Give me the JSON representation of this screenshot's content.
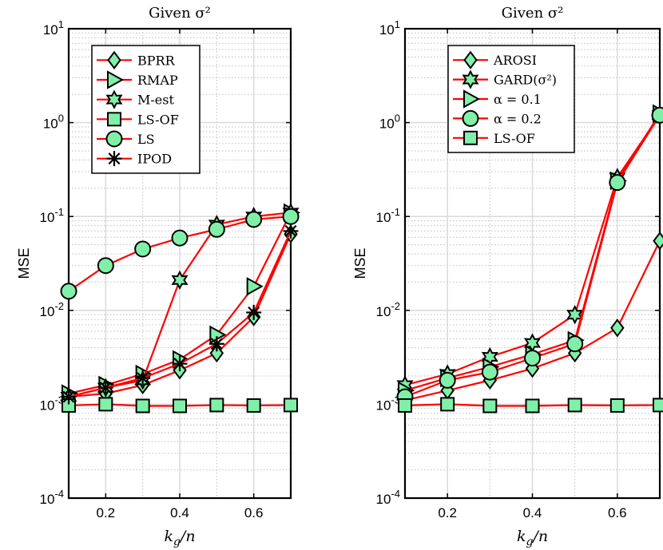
{
  "colors": {
    "line": "#ff0000",
    "marker_fill": "#80f0a8",
    "marker_edge": "#000000",
    "grid_major": "#dcdcdc",
    "grid_minor": "#bfbfbf"
  },
  "chart_data": [
    {
      "type": "line",
      "title": "Given σ²",
      "xlabel": "k_g/n",
      "ylabel": "MSE",
      "yscale": "log",
      "xlim": [
        0.1,
        0.7
      ],
      "ylim": [
        0.0001,
        10
      ],
      "xticks": [
        "0.2",
        "0.4",
        "0.6"
      ],
      "xtick_values": [
        0.2,
        0.4,
        0.6
      ],
      "yticks": [
        {
          "base": "10",
          "exp": "1"
        },
        {
          "base": "10",
          "exp": "0"
        },
        {
          "base": "10",
          "exp": "-1"
        },
        {
          "base": "10",
          "exp": "-2"
        },
        {
          "base": "10",
          "exp": "-3"
        },
        {
          "base": "10",
          "exp": "-4"
        }
      ],
      "ytick_values": [
        10,
        1,
        0.1,
        0.01,
        0.001,
        0.0001
      ],
      "legend_position": "top-left",
      "x": [
        0.1,
        0.2,
        0.3,
        0.4,
        0.5,
        0.6,
        0.7
      ],
      "series": [
        {
          "name": "BPRR",
          "marker": "diamond",
          "values": [
            0.0012,
            0.0013,
            0.0016,
            0.0023,
            0.0035,
            0.0085,
            0.065
          ]
        },
        {
          "name": "RMAP",
          "marker": "triangle-right",
          "values": [
            0.0013,
            0.0016,
            0.0021,
            0.003,
            0.0055,
            0.018,
            0.11
          ]
        },
        {
          "name": "M-est",
          "marker": "hexagram",
          "values": [
            0.0012,
            0.0015,
            0.0018,
            0.021,
            0.082,
            0.1,
            0.11
          ]
        },
        {
          "name": "LS-OF",
          "marker": "square",
          "values": [
            0.00097,
            0.001,
            0.00096,
            0.00096,
            0.00098,
            0.00097,
            0.00098
          ]
        },
        {
          "name": "LS",
          "marker": "circle",
          "values": [
            0.016,
            0.03,
            0.045,
            0.059,
            0.073,
            0.093,
            0.1
          ]
        },
        {
          "name": "IPOD",
          "marker": "asterisk",
          "values": [
            0.0012,
            0.0015,
            0.0019,
            0.0027,
            0.0044,
            0.0095,
            0.07
          ]
        }
      ]
    },
    {
      "type": "line",
      "title": "Given σ²",
      "xlabel": "k_g/n",
      "ylabel": "MSE",
      "yscale": "log",
      "xlim": [
        0.1,
        0.7
      ],
      "ylim": [
        0.0001,
        10
      ],
      "xticks": [
        "0.2",
        "0.4",
        "0.6"
      ],
      "xtick_values": [
        0.2,
        0.4,
        0.6
      ],
      "yticks": [
        {
          "base": "10",
          "exp": "1"
        },
        {
          "base": "10",
          "exp": "0"
        },
        {
          "base": "10",
          "exp": "-1"
        },
        {
          "base": "10",
          "exp": "-2"
        },
        {
          "base": "10",
          "exp": "-3"
        },
        {
          "base": "10",
          "exp": "-4"
        }
      ],
      "ytick_values": [
        10,
        1,
        0.1,
        0.01,
        0.001,
        0.0001
      ],
      "legend_position": "top-right",
      "x": [
        0.1,
        0.2,
        0.3,
        0.4,
        0.5,
        0.6,
        0.7
      ],
      "series": [
        {
          "name": "AROSI",
          "marker": "diamond",
          "values": [
            0.0011,
            0.0014,
            0.0018,
            0.0024,
            0.0035,
            0.0065,
            0.055
          ]
        },
        {
          "name": "GARD(σ²)",
          "marker": "hexagram",
          "values": [
            0.0016,
            0.0021,
            0.0032,
            0.0045,
            0.009,
            0.26,
            1.2
          ]
        },
        {
          "name": "α = 0.1",
          "marker": "triangle-right",
          "values": [
            0.0014,
            0.0019,
            0.0025,
            0.0034,
            0.0048,
            0.24,
            1.25
          ]
        },
        {
          "name": "α = 0.2",
          "marker": "circle",
          "values": [
            0.0012,
            0.0018,
            0.0022,
            0.0031,
            0.0044,
            0.23,
            1.2
          ]
        },
        {
          "name": "LS-OF",
          "marker": "square",
          "values": [
            0.00097,
            0.001,
            0.00096,
            0.00096,
            0.00098,
            0.00097,
            0.00098
          ]
        }
      ]
    }
  ]
}
